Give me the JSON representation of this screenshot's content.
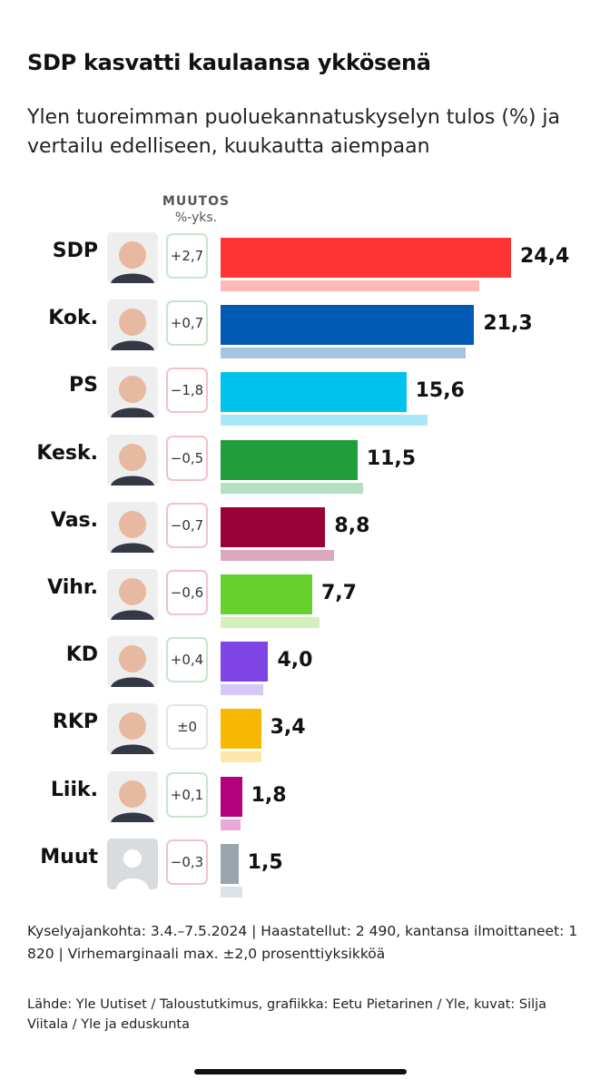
{
  "title": "SDP kasvatti kaulaansa ykkösenä",
  "subtitle": "Ylen tuoreimman puoluekannatuskyselyn tulos (%) ja vertailu edelliseen, kuukautta aiempaan",
  "muutos_header": "MUUTOS",
  "muutos_unit": "%-yks.",
  "chart_data": {
    "type": "bar",
    "orientation": "horizontal",
    "title": "SDP kasvatti kaulaansa ykkösenä",
    "subtitle": "Ylen tuoreimman puoluekannatuskyselyn tulos (%) ja vertailu edelliseen, kuukautta aiempaan",
    "categories": [
      "SDP",
      "Kok.",
      "PS",
      "Kesk.",
      "Vas.",
      "Vihr.",
      "KD",
      "RKP",
      "Liik.",
      "Muut"
    ],
    "values": [
      24.4,
      21.3,
      15.6,
      11.5,
      8.8,
      7.7,
      4.0,
      3.4,
      1.8,
      1.5
    ],
    "value_labels": [
      "24,4",
      "21,3",
      "15,6",
      "11,5",
      "8,8",
      "7,7",
      "4,0",
      "3,4",
      "1,8",
      "1,5"
    ],
    "previous_values": [
      21.7,
      20.6,
      17.4,
      12.0,
      9.5,
      8.3,
      3.6,
      3.4,
      1.7,
      1.8
    ],
    "changes": [
      "+2,7",
      "+0,7",
      "−1,8",
      "−0,5",
      "−0,7",
      "−0,6",
      "+0,4",
      "±0",
      "+0,1",
      "−0,3"
    ],
    "change_signs": [
      "pos",
      "pos",
      "neg",
      "neg",
      "neg",
      "neg",
      "pos",
      "zero",
      "pos",
      "neg"
    ],
    "colors": [
      "#ff3333",
      "#0059b3",
      "#00c3ed",
      "#1f9e3a",
      "#990038",
      "#66d12d",
      "#7e44e6",
      "#f6b800",
      "#b3007d",
      "#9aa5ae"
    ],
    "prev_colors": [
      "#ffb8b8",
      "#a6c4e2",
      "#a9e6f7",
      "#b5e0c0",
      "#dba8c0",
      "#d3f0bd",
      "#d7c7f6",
      "#fde6a8",
      "#e9a9d6",
      "#dde2e6"
    ],
    "xlim": [
      0,
      26
    ],
    "legend": "none",
    "grid": false
  },
  "avatars": [
    "person-photo",
    "person-photo",
    "person-photo",
    "person-photo",
    "person-photo",
    "person-photo",
    "person-photo",
    "person-photo",
    "person-photo",
    "placeholder-silhouette"
  ],
  "footer_note": "Kyselyajankohta: 3.4.–7.5.2024 | Haastatellut: 2 490, kantansa ilmoittaneet: 1 820 | Virhemarginaali max. ±2,0 prosenttiyksikköä",
  "footer_source": "Lähde: Yle Uutiset / Taloustutkimus, grafiikka: Eetu Pietarinen / Yle, kuvat: Silja Viitala / Yle ja eduskunta"
}
